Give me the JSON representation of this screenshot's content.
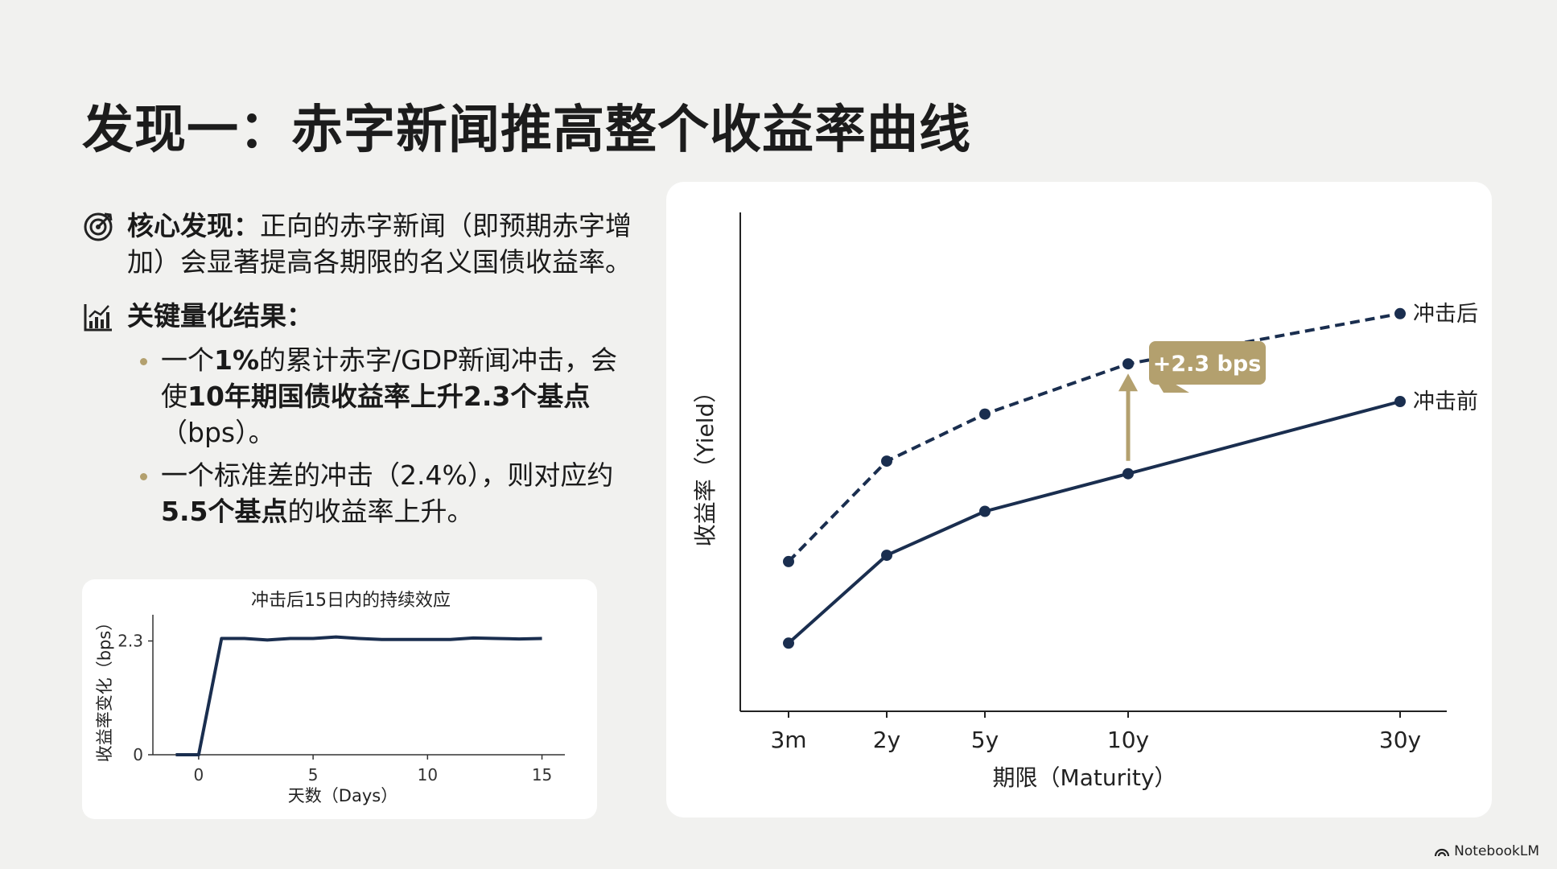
{
  "title": "发现一：赤字新闻推高整个收益率曲线",
  "finding": {
    "label": "核心发现：",
    "text": "正向的赤字新闻（即预期赤字增加）会显著提高各期限的名义国债收益率。"
  },
  "results": {
    "label": "关键量化结果：",
    "bullets": [
      {
        "t1": "一个",
        "b1": "1%",
        "t2": "的累计赤字/GDP新闻冲击，会使",
        "b2": "10年期国债收益率上升2.3个基点",
        "t3": "（bps）。"
      },
      {
        "t1": "一个标准差的冲击（2.4%），则对应约",
        "b1": "5.5个基点",
        "t2": "的收益率上升。",
        "b2": "",
        "t3": ""
      }
    ]
  },
  "brand": "NotebookLM",
  "chart_data": [
    {
      "type": "line",
      "title": "冲击后15日内的持续效应",
      "xlabel": "天数（Days）",
      "ylabel": "收益率变化（bps）",
      "xlim": [
        -2,
        16
      ],
      "ylim": [
        0,
        2.7
      ],
      "xticks": [
        0,
        5,
        10,
        15
      ],
      "yticks": [
        0,
        2.3
      ],
      "series": [
        {
          "color": "#1a2e4f",
          "x": [
            -1,
            0,
            1,
            2,
            3,
            4,
            5,
            6,
            7,
            8,
            9,
            10,
            11,
            12,
            13,
            14,
            15
          ],
          "y": [
            0,
            0,
            2.35,
            2.35,
            2.32,
            2.35,
            2.35,
            2.38,
            2.35,
            2.33,
            2.33,
            2.33,
            2.33,
            2.36,
            2.35,
            2.34,
            2.35
          ]
        }
      ]
    },
    {
      "type": "line",
      "xlabel": "期限（Maturity）",
      "ylabel": "收益率（Yield）",
      "categories": [
        "3m",
        "2y",
        "5y",
        "10y",
        "30y"
      ],
      "x": [
        0.25,
        2,
        5,
        10,
        30
      ],
      "annotation": "+2.3 bps",
      "annotation_color": "#b3a06e",
      "series": [
        {
          "name": "冲击前",
          "style": "solid",
          "color": "#1a2e4f",
          "values": [
            0.15,
            1.55,
            2.25,
            2.85,
            4.0
          ]
        },
        {
          "name": "冲击后",
          "style": "dashed",
          "color": "#1a2e4f",
          "values": [
            1.45,
            3.05,
            3.8,
            4.6,
            5.4
          ]
        }
      ]
    }
  ]
}
